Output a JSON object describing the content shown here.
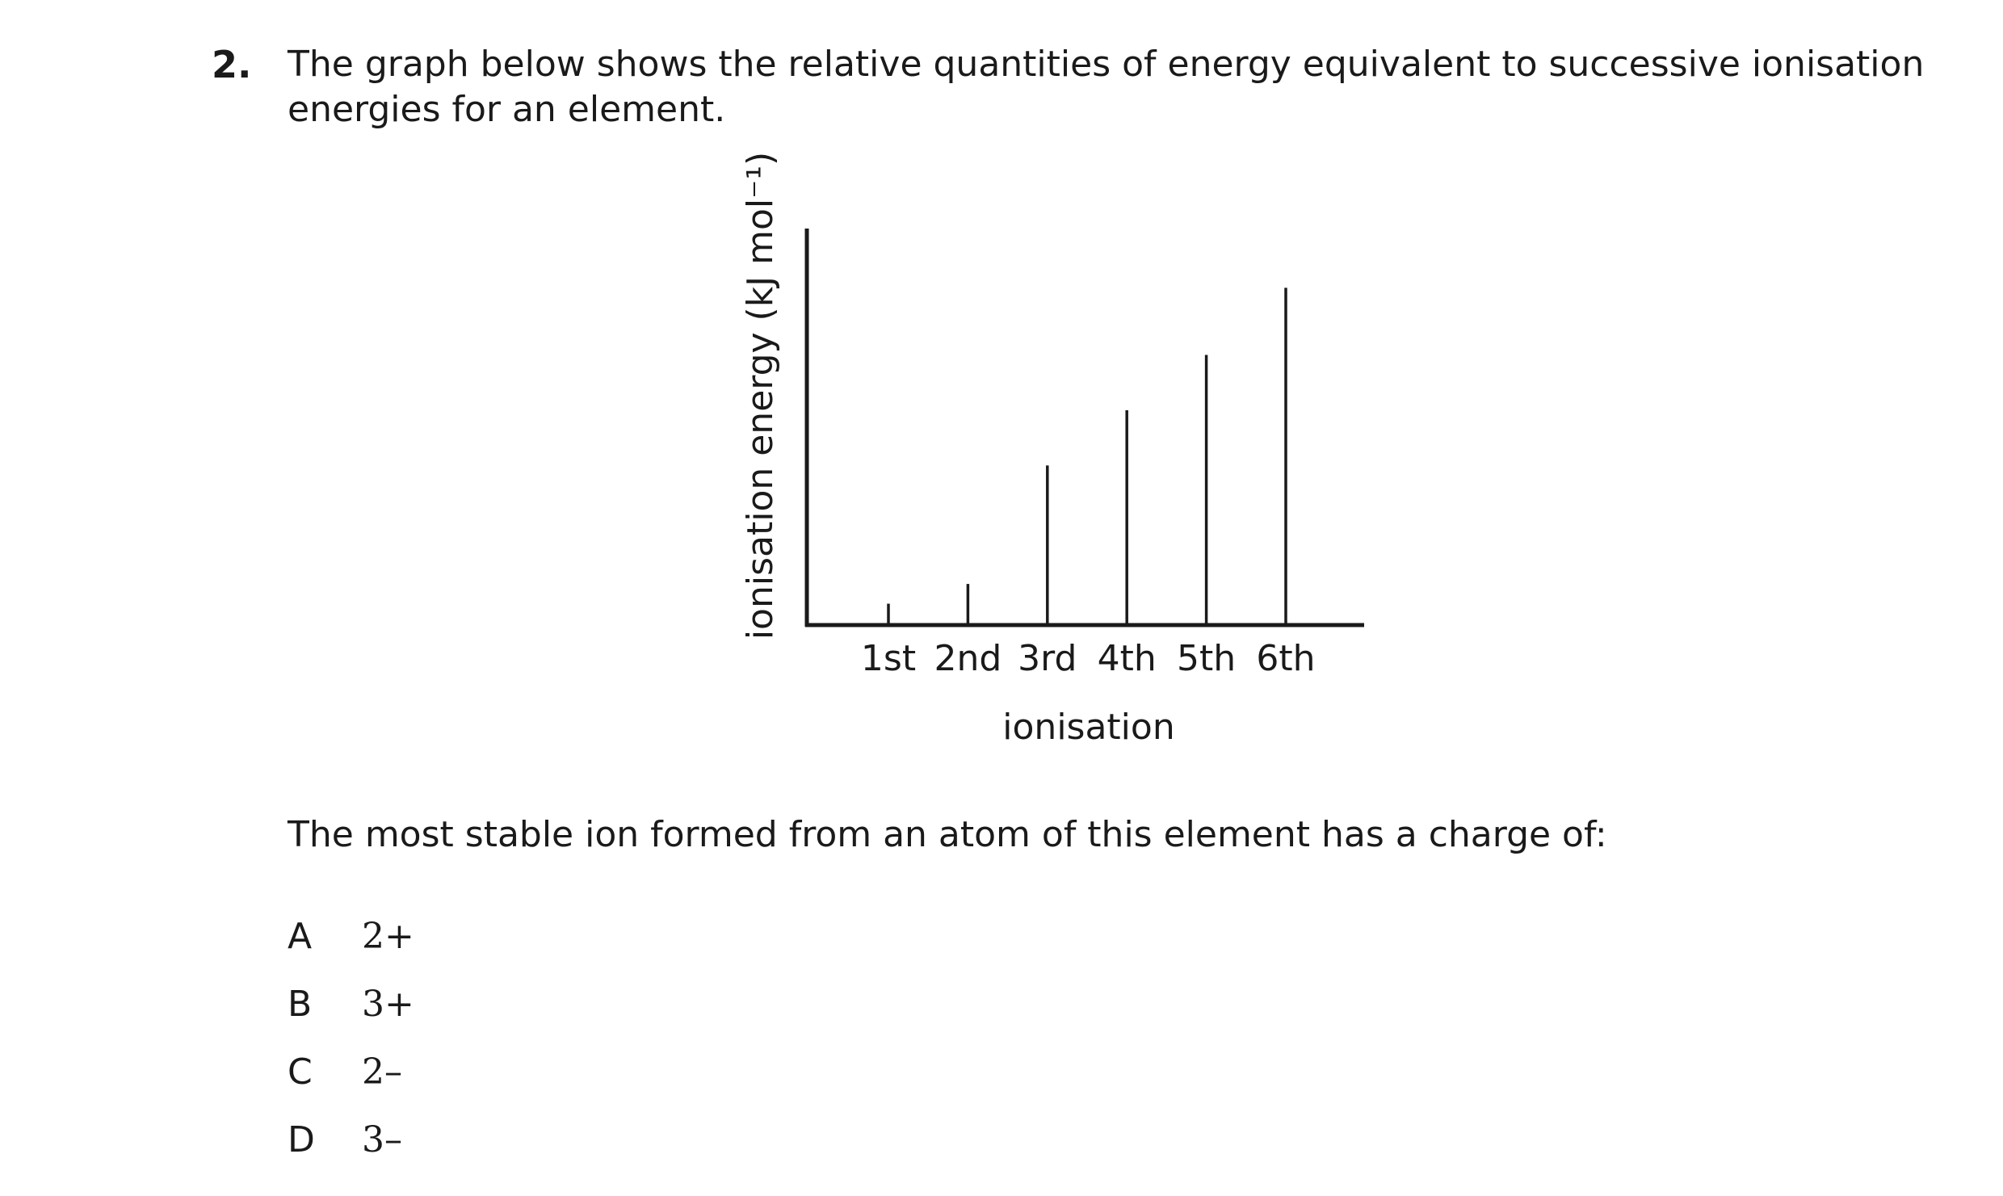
{
  "question": {
    "number": "2.",
    "text": "The graph below shows the relative quantities of energy equivalent to successive ionisation energies for an element.",
    "stem": "The most stable ion formed from an atom of this element has a charge of:"
  },
  "chart_data": {
    "type": "bar",
    "categories": [
      "1st",
      "2nd",
      "3rd",
      "4th",
      "5th",
      "6th"
    ],
    "values": [
      0.5,
      1.0,
      4.0,
      5.4,
      6.8,
      8.5
    ],
    "xlabel": "ionisation",
    "ylabel": "ionisation energy (kJ mol⁻¹)",
    "ylim": [
      0,
      10
    ],
    "grid": false
  },
  "options": [
    {
      "letter": "A",
      "value": "2+"
    },
    {
      "letter": "B",
      "value": "3+"
    },
    {
      "letter": "C",
      "value": "2–"
    },
    {
      "letter": "D",
      "value": "3–"
    }
  ]
}
